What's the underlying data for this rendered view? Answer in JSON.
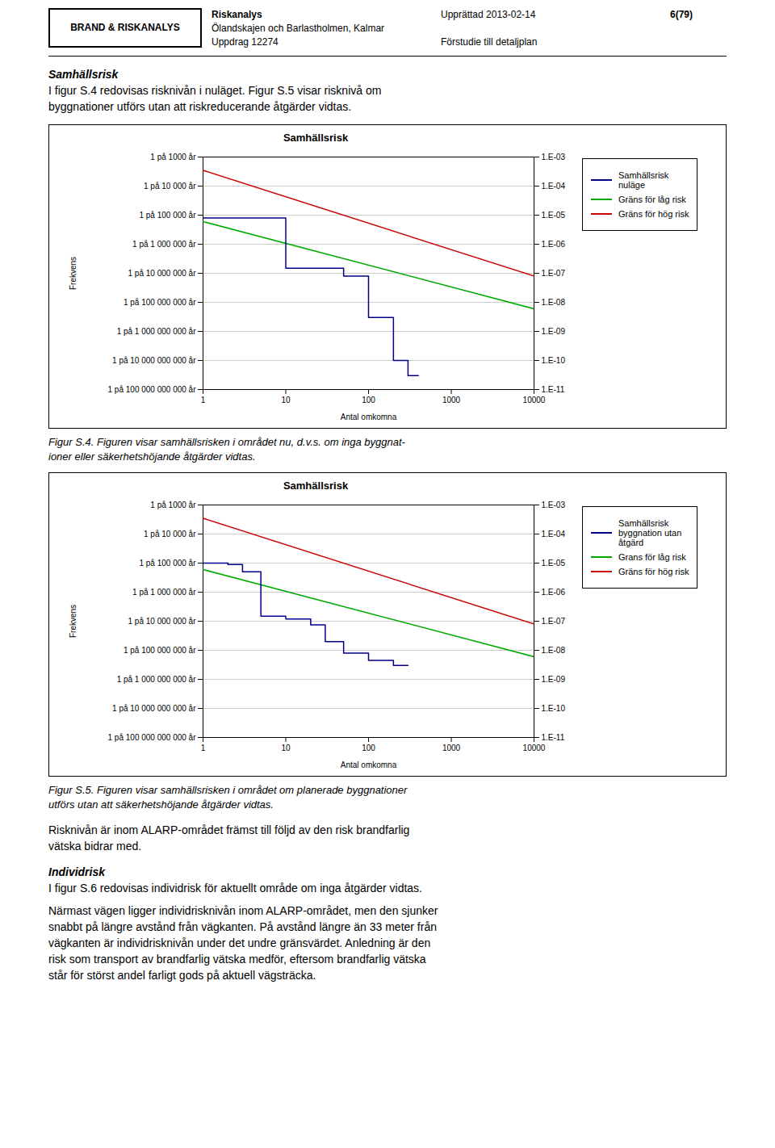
{
  "header": {
    "brand": "BRAND & RISKANALYS",
    "title": "Riskanalys",
    "subtitle": [
      "Ölandskajen och Barlastholmen, Kalmar",
      "Uppdrag 12274"
    ],
    "date": "Upprättad 2013-02-14",
    "note": "Förstudie till detaljplan",
    "page": "6(79)"
  },
  "intro": {
    "heading": "Samhällsrisk",
    "paragraphs": [
      [
        "I figur S.4 redovisas risknivån i nuläget. Figur S.5 visar risknivå om",
        "byggnationer utförs utan att riskreducerande åtgärder vidtas."
      ]
    ]
  },
  "chart_data": [
    {
      "type": "line",
      "title": "Samhällsrisk",
      "x_label": "Antal omkomna",
      "y_label": "Frekvens",
      "log": true,
      "grid": "y",
      "legend": "right",
      "xlim": [
        1,
        10000
      ],
      "xticks": [
        1,
        10,
        100,
        1000,
        10000
      ],
      "ylim": [
        1e-11,
        0.001
      ],
      "yticks": [
        {
          "value": 0.001,
          "label": "1 på 1000 år"
        },
        {
          "value": 0.0001,
          "label": "1 på 10 000 år"
        },
        {
          "value": 1e-05,
          "label": "1 på 100 000 år"
        },
        {
          "value": 1e-06,
          "label": "1 på 1 000 000 år"
        },
        {
          "value": 1e-07,
          "label": "1 på 10 000 000 år"
        },
        {
          "value": 1e-08,
          "label": "1 på 100 000 000 år"
        },
        {
          "value": 1e-09,
          "label": "1 på 1 000 000 000 år"
        },
        {
          "value": 1e-10,
          "label": "1 på 10 000 000 000 år"
        },
        {
          "value": 1e-11,
          "label": "1 på 100 000 000 000 år"
        }
      ],
      "y2lim": [
        1e-11,
        0.001
      ],
      "y2ticks": [
        {
          "value": 0.001,
          "label": "1.E-03"
        },
        {
          "value": 0.0001,
          "label": "1.E-04"
        },
        {
          "value": 1e-05,
          "label": "1.E-05"
        },
        {
          "value": 1e-06,
          "label": "1.E-06"
        },
        {
          "value": 1e-07,
          "label": "1.E-07"
        },
        {
          "value": 1e-08,
          "label": "1.E-08"
        },
        {
          "value": 1e-09,
          "label": "1.E-09"
        },
        {
          "value": 1e-10,
          "label": "1.E-10"
        },
        {
          "value": 1e-11,
          "label": "1.E-11"
        }
      ],
      "series": [
        {
          "name": "Samhällsrisk\nnuläge",
          "type": "step",
          "color": "#00008b",
          "x": [
            1,
            2,
            5,
            10,
            20,
            50,
            100,
            200,
            300,
            400
          ],
          "values": [
            8e-06,
            8e-06,
            8e-06,
            1.5e-07,
            1.5e-07,
            8e-08,
            3e-09,
            1e-10,
            3e-11,
            3e-11
          ]
        },
        {
          "name": "Gräns för låg risk",
          "type": "line",
          "color": "#00aa00",
          "x": [
            1,
            10000
          ],
          "values": [
            6e-06,
            6e-09
          ]
        },
        {
          "name": "Gräns för hög risk",
          "type": "line",
          "color": "#cc0000",
          "x": [
            1,
            10000
          ],
          "values": [
            0.00035,
            8e-08
          ]
        }
      ],
      "caption": [
        "Figur S.4. Figuren visar samhällsrisken i området nu, d.v.s. om inga byggnat-",
        "ioner eller säkerhetshöjande åtgärder vidtas."
      ]
    },
    {
      "type": "line",
      "title": "Samhällsrisk",
      "x_label": "Antal omkomna",
      "y_label": "Frekvens",
      "log": true,
      "grid": "y",
      "legend": "right",
      "xlim": [
        1,
        10000
      ],
      "xticks": [
        1,
        10,
        100,
        1000,
        10000
      ],
      "ylim": [
        1e-11,
        0.001
      ],
      "yticks": [
        {
          "value": 0.001,
          "label": "1 på 1000 år"
        },
        {
          "value": 0.0001,
          "label": "1 på 10 000 år"
        },
        {
          "value": 1e-05,
          "label": "1 på 100 000 år"
        },
        {
          "value": 1e-06,
          "label": "1 på 1 000 000 år"
        },
        {
          "value": 1e-07,
          "label": "1 på 10 000 000 år"
        },
        {
          "value": 1e-08,
          "label": "1 på 100 000 000 år"
        },
        {
          "value": 1e-09,
          "label": "1 på 1 000 000 000 år"
        },
        {
          "value": 1e-10,
          "label": "1 på 10 000 000 000 år"
        },
        {
          "value": 1e-11,
          "label": "1 på 100 000 000 000 år"
        }
      ],
      "y2lim": [
        1e-11,
        0.001
      ],
      "y2ticks": [
        {
          "value": 0.001,
          "label": "1.E-03"
        },
        {
          "value": 0.0001,
          "label": "1.E-04"
        },
        {
          "value": 1e-05,
          "label": "1.E-05"
        },
        {
          "value": 1e-06,
          "label": "1.E-06"
        },
        {
          "value": 1e-07,
          "label": "1.E-07"
        },
        {
          "value": 1e-08,
          "label": "1.E-08"
        },
        {
          "value": 1e-09,
          "label": "1.E-09"
        },
        {
          "value": 1e-10,
          "label": "1.E-10"
        },
        {
          "value": 1e-11,
          "label": "1.E-11"
        }
      ],
      "series": [
        {
          "name": "Samhällsrisk\nbyggnation utan\nåtgärd",
          "type": "step",
          "color": "#00008b",
          "x": [
            1,
            2,
            3,
            5,
            10,
            20,
            30,
            50,
            100,
            200,
            300
          ],
          "values": [
            1e-05,
            9e-06,
            5e-06,
            1.5e-07,
            1.2e-07,
            7.5e-08,
            2e-08,
            8e-09,
            4.5e-09,
            3e-09,
            3e-09
          ]
        },
        {
          "name": "Grans för låg risk",
          "type": "line",
          "color": "#00aa00",
          "x": [
            1,
            10000
          ],
          "values": [
            6e-06,
            6e-09
          ]
        },
        {
          "name": "Gräns för hög risk",
          "type": "line",
          "color": "#cc0000",
          "x": [
            1,
            10000
          ],
          "values": [
            0.00035,
            8e-08
          ]
        }
      ],
      "caption": [
        "Figur S.5. Figuren visar samhällsrisken i området om planerade byggnationer",
        "utförs utan att säkerhetshöjande åtgärder vidtas."
      ]
    }
  ],
  "closing": [
    {
      "paragraphs": [
        [
          "Risknivån är inom ALARP-området främst till följd av den risk brandfarlig",
          "vätska bidrar med."
        ]
      ]
    },
    {
      "heading": "Individrisk",
      "paragraphs": [
        [
          "I figur S.6 redovisas individrisk för aktuellt område om inga åtgärder vidtas."
        ],
        [
          "Närmast vägen ligger individrisknivån inom ALARP-området, men den sjunker",
          "snabbt på längre avstånd från vägkanten. På avstånd längre än 33 meter från",
          "vägkanten är individrisknivån under det undre gränsvärdet. Anledning är den",
          "risk som transport av brandfarlig vätska medför, eftersom brandfarlig vätska",
          "står för störst andel farligt gods på aktuell vägsträcka."
        ]
      ]
    }
  ]
}
